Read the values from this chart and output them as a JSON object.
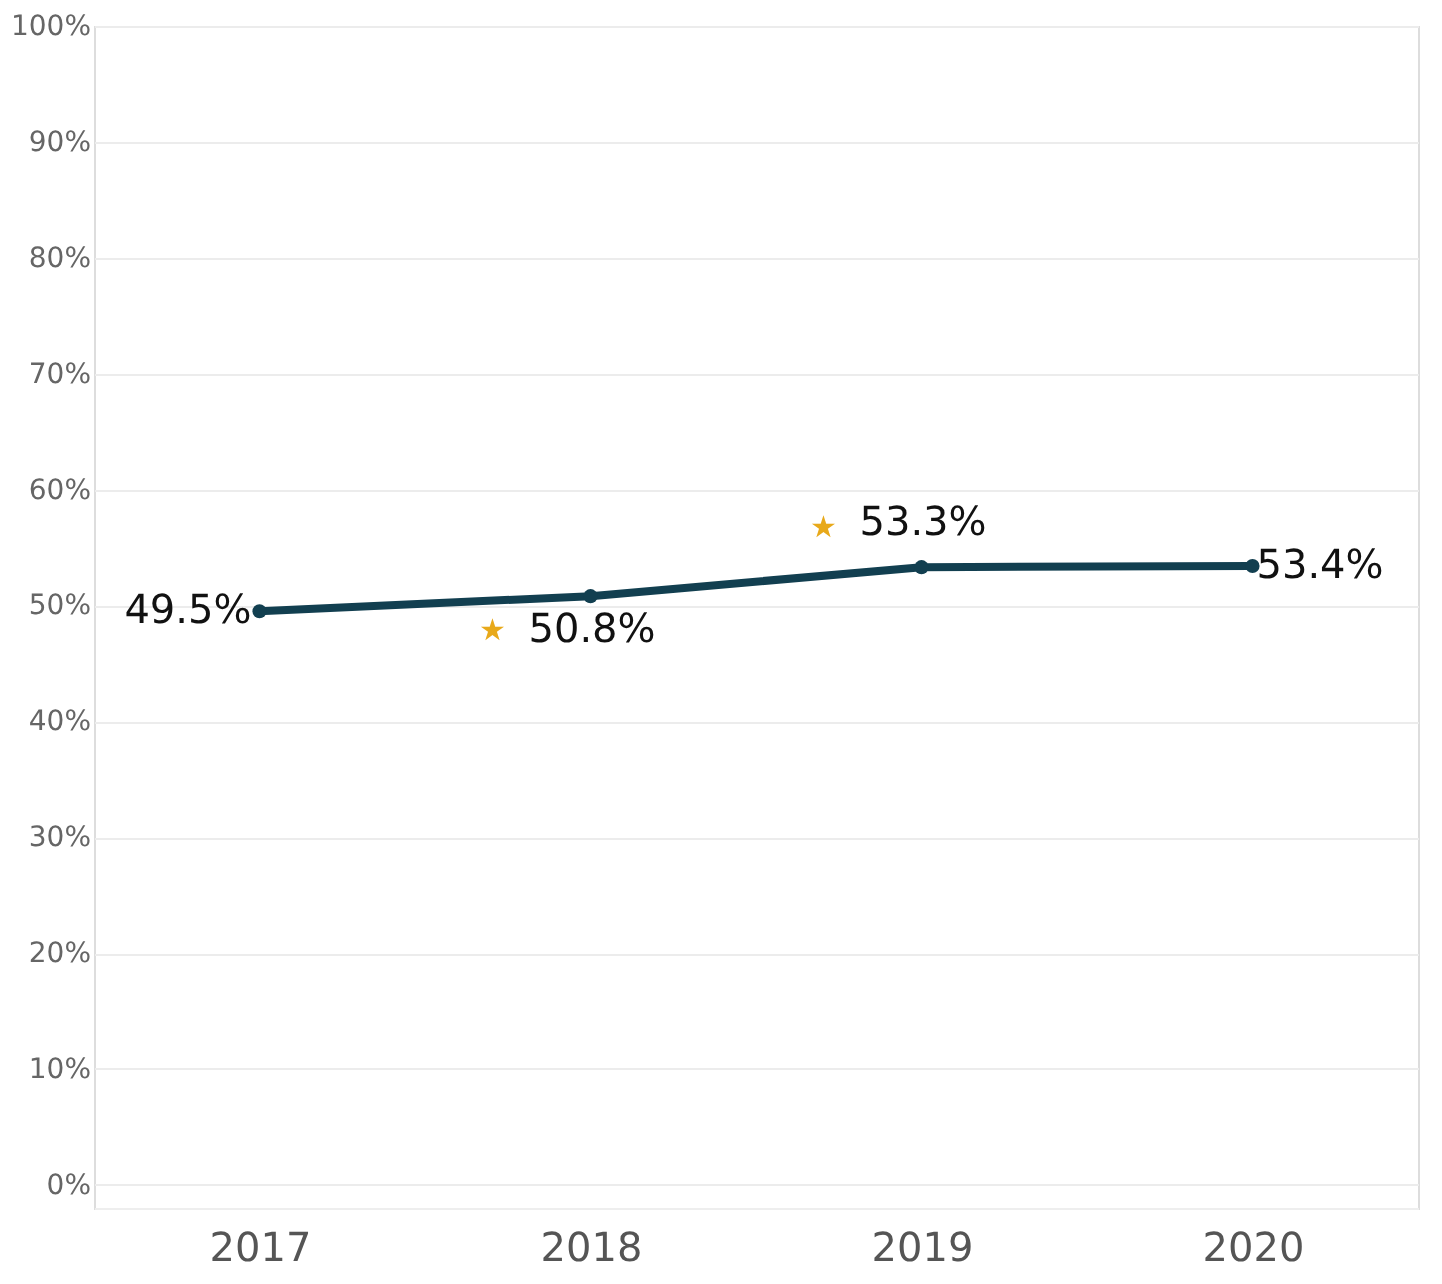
{
  "chart_data": {
    "type": "line",
    "categories": [
      "2017",
      "2018",
      "2019",
      "2020"
    ],
    "series": [
      {
        "color": "#123f50",
        "values": [
          49.5,
          50.8,
          53.3,
          53.4
        ]
      }
    ],
    "value_labels": [
      "49.5%",
      "50.8%",
      "53.3%",
      "53.4%"
    ],
    "ylim": [
      -2,
      100
    ],
    "yticks": [
      {
        "value": 0,
        "label": "0%"
      },
      {
        "value": 10,
        "label": "10%"
      },
      {
        "value": 20,
        "label": "20%"
      },
      {
        "value": 30,
        "label": "30%"
      },
      {
        "value": 40,
        "label": "40%"
      },
      {
        "value": 50,
        "label": "50%"
      },
      {
        "value": 60,
        "label": "60%"
      },
      {
        "value": 70,
        "label": "70%"
      },
      {
        "value": 80,
        "label": "80%"
      },
      {
        "value": 90,
        "label": "90%"
      },
      {
        "value": 100,
        "label": "100%"
      }
    ],
    "annotations": [
      "★",
      "★"
    ],
    "grid": "y",
    "marker": "circle",
    "line_style": "solid"
  }
}
